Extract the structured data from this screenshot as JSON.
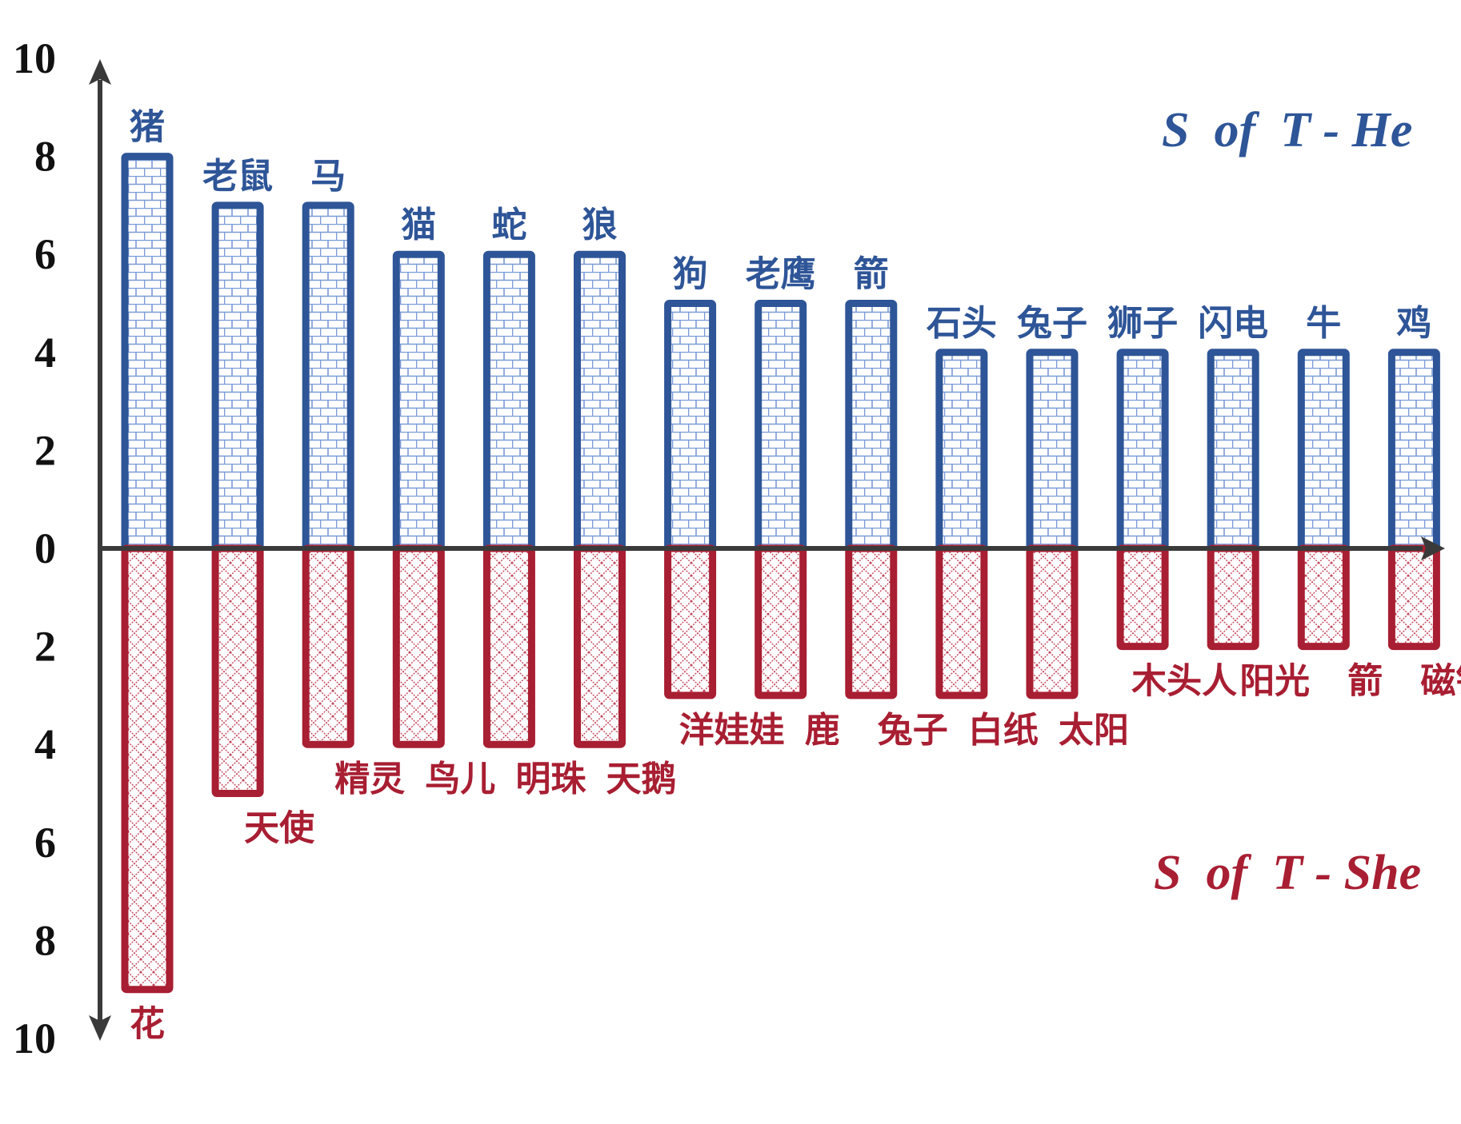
{
  "chart_data": {
    "type": "bar",
    "title": "",
    "xlabel": "",
    "ylabel": "",
    "ylim": [
      -10,
      10
    ],
    "y_ticks": [
      "10",
      "8",
      "6",
      "4",
      "2",
      "0",
      "2",
      "4",
      "6",
      "8",
      "10"
    ],
    "series": [
      {
        "name": "S  of  T - He",
        "color": "#2E5597",
        "categories": [
          "猪",
          "老鼠",
          "马",
          "猫",
          "蛇",
          "狼",
          "狗",
          "老鹰",
          "箭",
          "石头",
          "兔子",
          "狮子",
          "闪电",
          "牛",
          "鸡"
        ],
        "values": [
          8,
          7,
          7,
          6,
          6,
          6,
          5,
          5,
          5,
          4,
          4,
          4,
          4,
          4,
          4
        ]
      },
      {
        "name": "S  of  T - She",
        "color": "#A81E32",
        "categories": [
          "花",
          "天使",
          "精灵",
          "鸟儿",
          "明珠",
          "天鹅",
          "洋娃娃",
          "鹿",
          "兔子",
          "白纸",
          "太阳",
          "木头人",
          "阳光",
          "箭",
          "磁铁"
        ],
        "values": [
          -9,
          -5,
          -4,
          -4,
          -4,
          -4,
          -3,
          -3,
          -3,
          -3,
          -3,
          -2,
          -2,
          -2,
          -2
        ]
      }
    ]
  }
}
